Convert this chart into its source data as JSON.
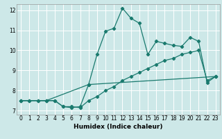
{
  "xlabel": "Humidex (Indice chaleur)",
  "bg_color": "#cde8e8",
  "grid_color": "#ffffff",
  "line_color": "#1a7a6e",
  "xlim": [
    -0.5,
    23.5
  ],
  "ylim": [
    6.8,
    12.3
  ],
  "xticks": [
    0,
    1,
    2,
    3,
    4,
    5,
    6,
    7,
    8,
    9,
    10,
    11,
    12,
    13,
    14,
    15,
    16,
    17,
    18,
    19,
    20,
    21,
    22,
    23
  ],
  "yticks": [
    7,
    8,
    9,
    10,
    11,
    12
  ],
  "series1": [
    [
      0,
      7.5
    ],
    [
      1,
      7.5
    ],
    [
      2,
      7.5
    ],
    [
      3,
      7.5
    ],
    [
      4,
      7.5
    ],
    [
      5,
      7.2
    ],
    [
      6,
      7.15
    ],
    [
      7,
      7.2
    ],
    [
      8,
      8.3
    ],
    [
      9,
      9.8
    ],
    [
      10,
      10.95
    ],
    [
      11,
      11.1
    ],
    [
      12,
      12.1
    ],
    [
      13,
      11.6
    ],
    [
      14,
      11.35
    ],
    [
      15,
      9.8
    ],
    [
      16,
      10.45
    ],
    [
      17,
      10.35
    ],
    [
      18,
      10.25
    ],
    [
      19,
      10.2
    ],
    [
      20,
      10.65
    ],
    [
      21,
      10.45
    ],
    [
      22,
      8.4
    ],
    [
      23,
      8.7
    ]
  ],
  "series2": [
    [
      0,
      7.5
    ],
    [
      1,
      7.5
    ],
    [
      2,
      7.5
    ],
    [
      3,
      7.5
    ],
    [
      4,
      7.5
    ],
    [
      5,
      7.2
    ],
    [
      6,
      7.2
    ],
    [
      7,
      7.15
    ],
    [
      8,
      7.5
    ],
    [
      9,
      7.7
    ],
    [
      10,
      8.0
    ],
    [
      11,
      8.2
    ],
    [
      12,
      8.5
    ],
    [
      13,
      8.7
    ],
    [
      14,
      8.9
    ],
    [
      15,
      9.1
    ],
    [
      16,
      9.3
    ],
    [
      17,
      9.5
    ],
    [
      18,
      9.6
    ],
    [
      19,
      9.8
    ],
    [
      20,
      9.9
    ],
    [
      21,
      10.0
    ],
    [
      22,
      8.5
    ],
    [
      23,
      8.7
    ]
  ],
  "series3": [
    [
      0,
      7.5
    ],
    [
      3,
      7.5
    ],
    [
      8,
      8.3
    ],
    [
      23,
      8.7
    ]
  ]
}
